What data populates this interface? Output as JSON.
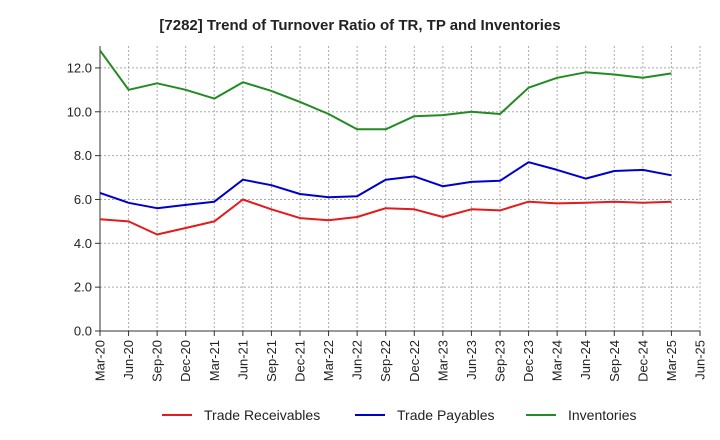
{
  "chart_data": {
    "type": "line",
    "title": "[7282]  Trend of Turnover Ratio of TR, TP and Inventories",
    "xlabel": "",
    "ylabel": "",
    "ylim": [
      0,
      13
    ],
    "yticks": [
      "0.0",
      "2.0",
      "4.0",
      "6.0",
      "8.0",
      "10.0",
      "12.0"
    ],
    "ytick_values": [
      0,
      2,
      4,
      6,
      8,
      10,
      12
    ],
    "xticks": [
      "Mar-20",
      "Jun-20",
      "Sep-20",
      "Dec-20",
      "Mar-21",
      "Jun-21",
      "Sep-21",
      "Dec-21",
      "Mar-22",
      "Jun-22",
      "Sep-22",
      "Dec-22",
      "Mar-23",
      "Jun-23",
      "Sep-23",
      "Dec-23",
      "Mar-24",
      "Jun-24",
      "Sep-24",
      "Dec-24",
      "Mar-25",
      "Jun-25"
    ],
    "x": [
      "Mar-20",
      "Jun-20",
      "Sep-20",
      "Dec-20",
      "Mar-21",
      "Jun-21",
      "Sep-21",
      "Dec-21",
      "Mar-22",
      "Jun-22",
      "Sep-22",
      "Dec-22",
      "Mar-23",
      "Jun-23",
      "Sep-23",
      "Dec-23",
      "Mar-24",
      "Jun-24",
      "Sep-24",
      "Dec-24",
      "Mar-25"
    ],
    "grid": true,
    "legend_position": "bottom",
    "series": [
      {
        "name": "Trade Receivables",
        "color": "#e41a1c",
        "values": [
          5.1,
          5.0,
          4.4,
          4.7,
          5.0,
          6.0,
          5.55,
          5.15,
          5.05,
          5.2,
          5.6,
          5.55,
          5.2,
          5.55,
          5.5,
          5.9,
          5.82,
          5.85,
          5.9,
          5.85,
          5.9
        ]
      },
      {
        "name": "Trade Payables",
        "color": "#0000cc",
        "values": [
          6.3,
          5.85,
          5.6,
          5.75,
          5.9,
          6.9,
          6.65,
          6.25,
          6.1,
          6.15,
          6.9,
          7.05,
          6.6,
          6.8,
          6.85,
          7.7,
          7.35,
          6.95,
          7.3,
          7.35,
          7.1
        ]
      },
      {
        "name": "Inventories",
        "color": "#228b22",
        "values": [
          12.8,
          11.0,
          11.3,
          11.0,
          10.6,
          11.35,
          10.95,
          10.45,
          9.9,
          9.2,
          9.2,
          9.8,
          9.85,
          10.0,
          9.9,
          11.1,
          11.55,
          11.8,
          11.7,
          11.55,
          11.75
        ]
      }
    ]
  }
}
